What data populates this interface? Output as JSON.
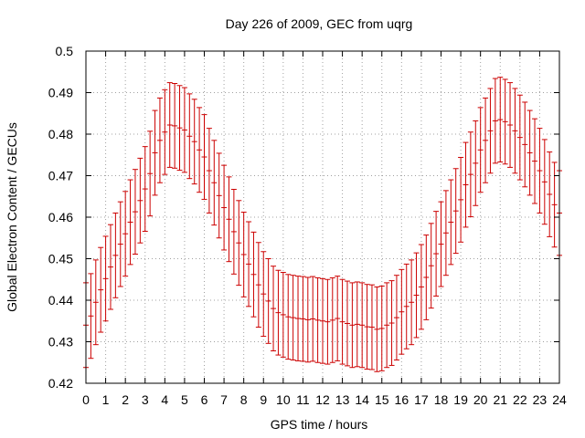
{
  "chart_data": {
    "type": "scatter",
    "title": "Day 226 of 2009, GEC from uqrg",
    "xlabel": "GPS time / hours",
    "ylabel": "Global Electron Content / GECUs",
    "xlim": [
      0,
      24
    ],
    "ylim": [
      0.42,
      0.5
    ],
    "xticks": [
      "0",
      "1",
      "2",
      "3",
      "4",
      "5",
      "6",
      "7",
      "8",
      "9",
      "10",
      "11",
      "12",
      "13",
      "14",
      "15",
      "16",
      "17",
      "18",
      "19",
      "20",
      "21",
      "22",
      "23",
      "24"
    ],
    "yticks": [
      "0.42",
      "0.43",
      "0.44",
      "0.45",
      "0.46",
      "0.47",
      "0.48",
      "0.49",
      "0.5"
    ],
    "grid": true,
    "error": 0.0102,
    "series": [
      {
        "name": "GEC",
        "color": "#cc0000",
        "x": [
          0.0,
          0.25,
          0.5,
          0.75,
          1.0,
          1.25,
          1.5,
          1.75,
          2.0,
          2.25,
          2.5,
          2.75,
          3.0,
          3.25,
          3.5,
          3.75,
          4.0,
          4.25,
          4.5,
          4.75,
          5.0,
          5.25,
          5.5,
          5.75,
          6.0,
          6.25,
          6.5,
          6.75,
          7.0,
          7.25,
          7.5,
          7.75,
          8.0,
          8.25,
          8.5,
          8.75,
          9.0,
          9.25,
          9.5,
          9.75,
          10.0,
          10.25,
          10.5,
          10.75,
          11.0,
          11.25,
          11.5,
          11.75,
          12.0,
          12.25,
          12.5,
          12.75,
          13.0,
          13.25,
          13.5,
          13.75,
          14.0,
          14.25,
          14.5,
          14.75,
          15.0,
          15.25,
          15.5,
          15.75,
          16.0,
          16.25,
          16.5,
          16.75,
          17.0,
          17.25,
          17.5,
          17.75,
          18.0,
          18.25,
          18.5,
          18.75,
          19.0,
          19.25,
          19.5,
          19.75,
          20.0,
          20.25,
          20.5,
          20.75,
          21.0,
          21.25,
          21.5,
          21.75,
          22.0,
          22.25,
          22.5,
          22.75,
          23.0,
          23.25,
          23.5,
          23.75,
          24.0
        ],
        "y": [
          0.434,
          0.4362,
          0.4395,
          0.4425,
          0.4452,
          0.448,
          0.4508,
          0.4535,
          0.456,
          0.4588,
          0.4613,
          0.464,
          0.4668,
          0.4705,
          0.4755,
          0.4785,
          0.4805,
          0.4822,
          0.482,
          0.4815,
          0.481,
          0.4795,
          0.4782,
          0.4762,
          0.4745,
          0.4712,
          0.4683,
          0.4652,
          0.4623,
          0.4595,
          0.4565,
          0.4538,
          0.451,
          0.4487,
          0.4462,
          0.4437,
          0.4415,
          0.4398,
          0.438,
          0.437,
          0.4365,
          0.436,
          0.4358,
          0.4356,
          0.4355,
          0.4353,
          0.4355,
          0.4352,
          0.435,
          0.4348,
          0.4352,
          0.4356,
          0.4348,
          0.4344,
          0.434,
          0.4342,
          0.434,
          0.4336,
          0.4335,
          0.433,
          0.4332,
          0.434,
          0.4345,
          0.4358,
          0.4372,
          0.4385,
          0.4395,
          0.4412,
          0.4432,
          0.4455,
          0.4483,
          0.4512,
          0.4535,
          0.4562,
          0.4588,
          0.4615,
          0.4642,
          0.4678,
          0.4703,
          0.473,
          0.4762,
          0.4785,
          0.4808,
          0.4832,
          0.4835,
          0.483,
          0.4822,
          0.4808,
          0.4792,
          0.4775,
          0.4755,
          0.4735,
          0.4712,
          0.4685,
          0.4655,
          0.463,
          0.461
        ]
      }
    ]
  }
}
